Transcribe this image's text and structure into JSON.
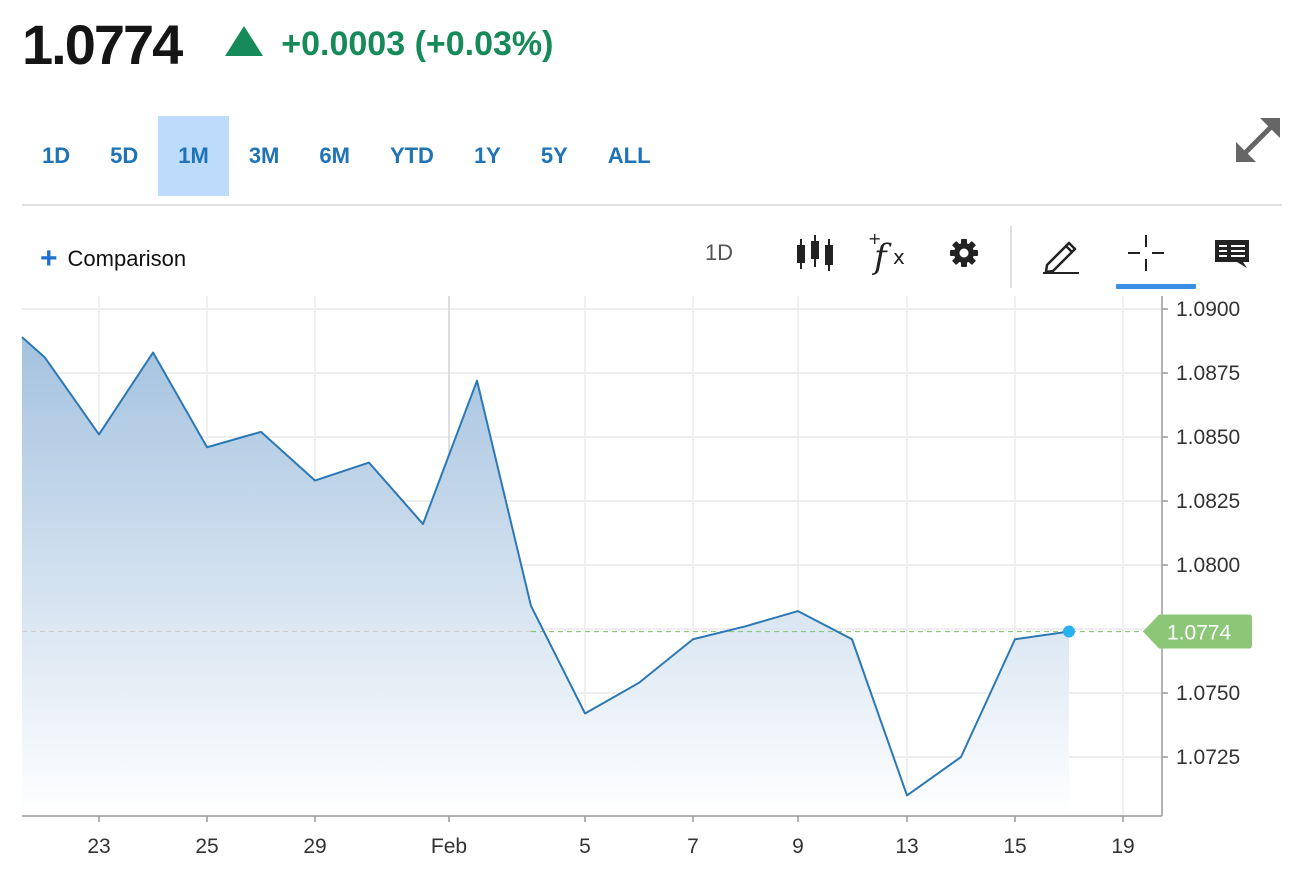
{
  "quote": {
    "price": "1.0774",
    "change": "+0.0003 (+0.03%)",
    "direction": "up",
    "up_color": "#168a59"
  },
  "ranges": {
    "items": [
      "1D",
      "5D",
      "1M",
      "3M",
      "6M",
      "YTD",
      "1Y",
      "5Y",
      "ALL"
    ],
    "active": "1M"
  },
  "toolbar": {
    "comparison_label": "Comparison",
    "interval_label": "1D",
    "icons": [
      "candlestick-icon",
      "fx-icon",
      "gear-icon",
      "pencil-icon",
      "crosshair-icon",
      "comment-icon"
    ],
    "active_tool": "crosshair-icon"
  },
  "chart_data": {
    "type": "area",
    "x_tick_labels": [
      "23",
      "25",
      "29",
      "Feb",
      "5",
      "7",
      "9",
      "13",
      "15",
      "19"
    ],
    "y_tick_labels": [
      "1.0900",
      "1.0875",
      "1.0850",
      "1.0825",
      "1.0800",
      "1.0750",
      "1.0725"
    ],
    "ylim": [
      1.0702,
      1.0901
    ],
    "grid": true,
    "line_color": "#2b78b5",
    "last_value": 1.0774,
    "last_label": "1.0774",
    "last_label_color": "#8cc677",
    "series": [
      {
        "points": [
          {
            "date": "Jan 21",
            "value": 1.0889
          },
          {
            "date": "Jan 22",
            "value": 1.0881
          },
          {
            "date": "Jan 23",
            "value": 1.0851
          },
          {
            "date": "Jan 24",
            "value": 1.0883
          },
          {
            "date": "Jan 25",
            "value": 1.0846
          },
          {
            "date": "Jan 26",
            "value": 1.0852
          },
          {
            "date": "Jan 29",
            "value": 1.0833
          },
          {
            "date": "Jan 30",
            "value": 1.084
          },
          {
            "date": "Jan 31",
            "value": 1.0816
          },
          {
            "date": "Feb 1",
            "value": 1.0872
          },
          {
            "date": "Feb 2",
            "value": 1.0784
          },
          {
            "date": "Feb 5",
            "value": 1.0742
          },
          {
            "date": "Feb 6",
            "value": 1.0754
          },
          {
            "date": "Feb 7",
            "value": 1.0771
          },
          {
            "date": "Feb 8",
            "value": 1.0776
          },
          {
            "date": "Feb 9",
            "value": 1.0782
          },
          {
            "date": "Feb 12",
            "value": 1.0771
          },
          {
            "date": "Feb 13",
            "value": 1.071
          },
          {
            "date": "Feb 14",
            "value": 1.0725
          },
          {
            "date": "Feb 15",
            "value": 1.0771
          },
          {
            "date": "Feb 16",
            "value": 1.0774
          }
        ]
      }
    ]
  }
}
